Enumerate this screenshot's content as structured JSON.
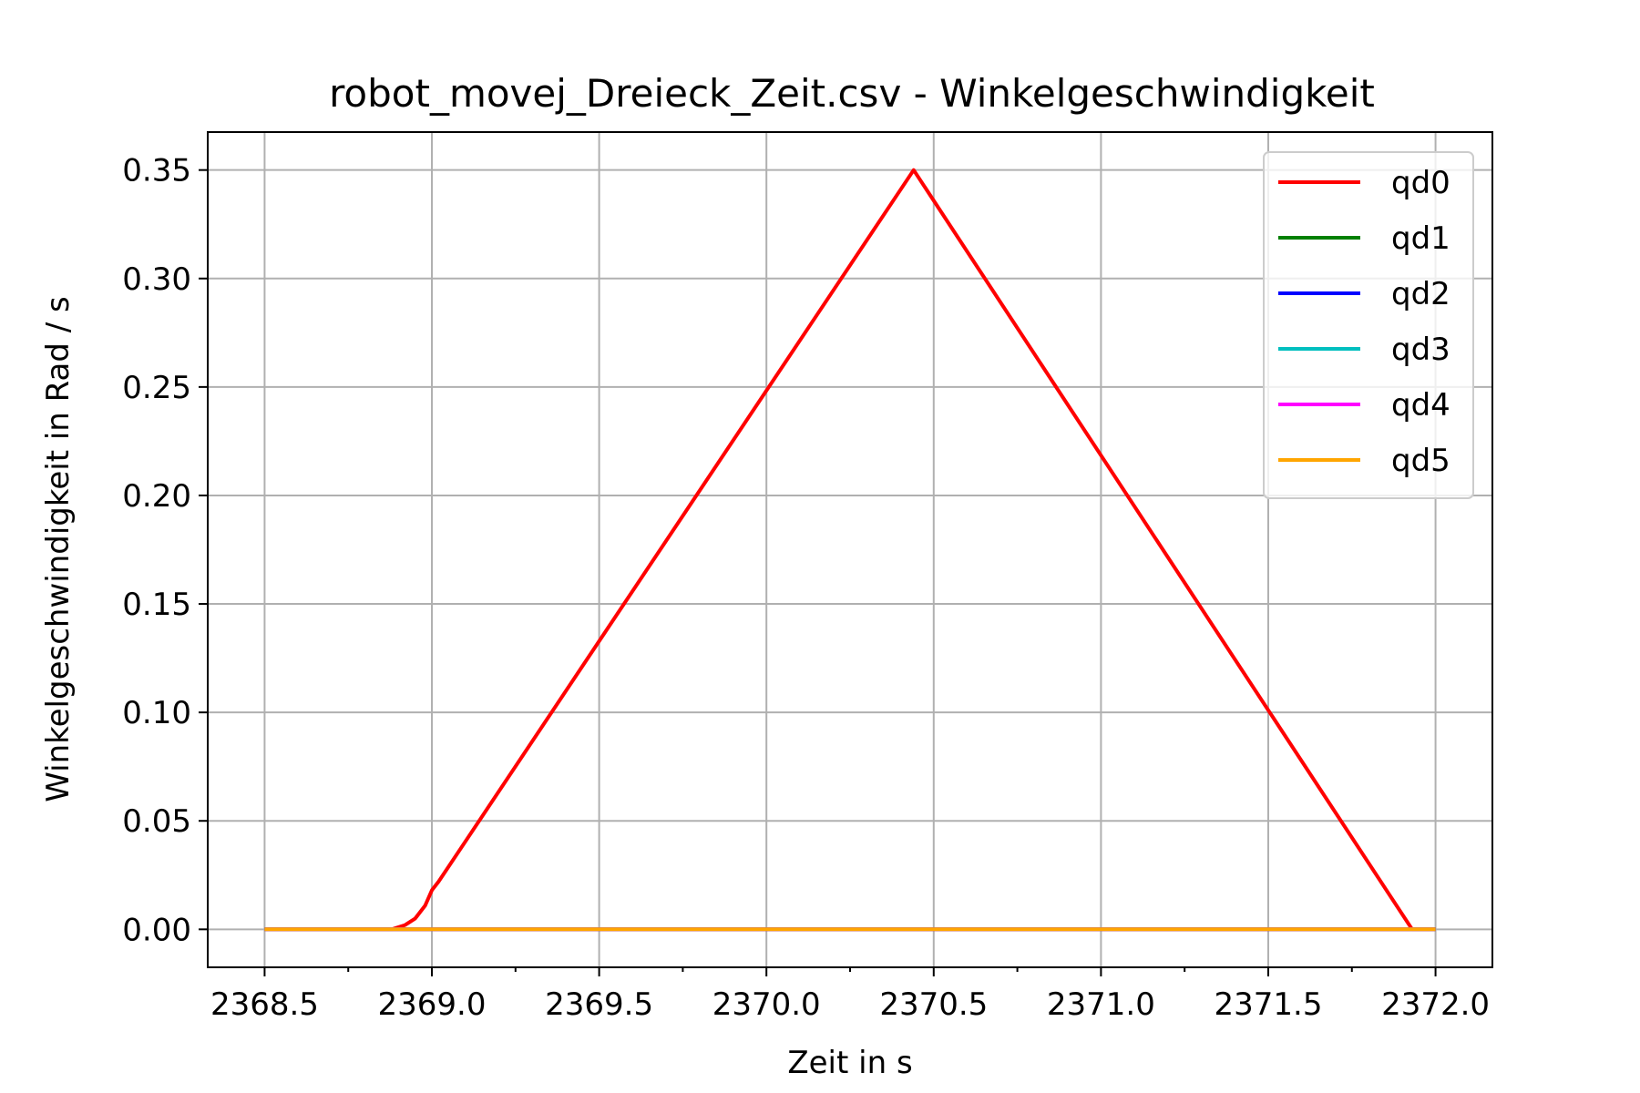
{
  "chart_data": {
    "type": "line",
    "title": "robot_movej_Dreieck_Zeit.csv - Winkelgeschwindigkeit",
    "xlabel": "Zeit in s",
    "ylabel": "Winkelgeschwindigkeit in Rad / s",
    "xlim": [
      2368.33,
      2372.17
    ],
    "ylim": [
      -0.0175,
      0.3675
    ],
    "xticks": [
      2368.5,
      2369.0,
      2369.5,
      2370.0,
      2370.5,
      2371.0,
      2371.5,
      2372.0
    ],
    "xtick_labels": [
      "2368.5",
      "2369.0",
      "2369.5",
      "2370.0",
      "2370.5",
      "2371.0",
      "2371.5",
      "2372.0"
    ],
    "xminor": [
      2368.75,
      2369.25,
      2369.75,
      2370.25,
      2370.75,
      2371.25,
      2371.75
    ],
    "yticks": [
      0.0,
      0.05,
      0.1,
      0.15,
      0.2,
      0.25,
      0.3,
      0.35
    ],
    "ytick_labels": [
      "0.00",
      "0.05",
      "0.10",
      "0.15",
      "0.20",
      "0.25",
      "0.30",
      "0.35"
    ],
    "grid": true,
    "legend_position": "top-right",
    "series": [
      {
        "name": "qd0",
        "color": "#ff0000",
        "x": [
          2368.5,
          2368.88,
          2368.92,
          2368.95,
          2368.98,
          2369.0,
          2369.02,
          2370.44,
          2371.93,
          2372.0
        ],
        "y": [
          0.0,
          0.0,
          0.002,
          0.005,
          0.011,
          0.018,
          0.022,
          0.35,
          0.0,
          0.0
        ]
      },
      {
        "name": "qd1",
        "color": "#008000",
        "x": [
          2368.5,
          2372.0
        ],
        "y": [
          0.0,
          0.0
        ]
      },
      {
        "name": "qd2",
        "color": "#0000ff",
        "x": [
          2368.5,
          2372.0
        ],
        "y": [
          0.0,
          0.0
        ]
      },
      {
        "name": "qd3",
        "color": "#00bfbf",
        "x": [
          2368.5,
          2372.0
        ],
        "y": [
          0.0,
          0.0
        ]
      },
      {
        "name": "qd4",
        "color": "#ff00ff",
        "x": [
          2368.5,
          2372.0
        ],
        "y": [
          0.0,
          0.0
        ]
      },
      {
        "name": "qd5",
        "color": "#ffa500",
        "x": [
          2368.5,
          2372.0
        ],
        "y": [
          0.0,
          0.0
        ]
      }
    ]
  }
}
